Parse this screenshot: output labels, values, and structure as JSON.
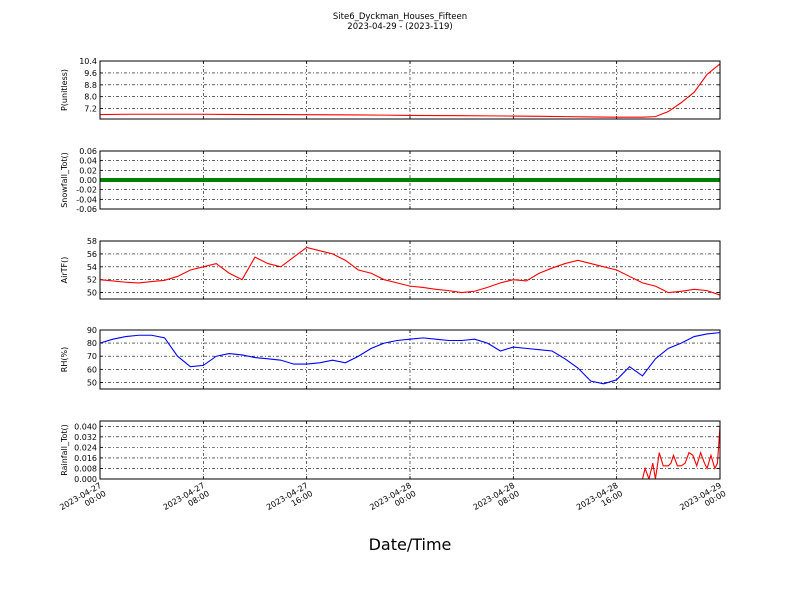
{
  "chart_data": {
    "type": "line",
    "title": "Site6_Dyckman_Houses_Fifteen",
    "subtitle": "2023-04-29 - (2023-119)",
    "xlabel": "Date/Time",
    "x_ticks": [
      "2023-04-27\n00:00",
      "2023-04-27\n08:00",
      "2023-04-27\n16:00",
      "2023-04-28\n00:00",
      "2023-04-28\n08:00",
      "2023-04-28\n16:00",
      "2023-04-29\n00:00"
    ],
    "xlim_hours": [
      0,
      48
    ],
    "grid": true,
    "panels": [
      {
        "ylabel": "P(unitless)",
        "ylim": [
          6.5,
          10.4
        ],
        "yticks": [
          "10.4",
          "9.6",
          "8.8",
          "8.0",
          "7.2"
        ],
        "ytick_values": [
          10.4,
          9.6,
          8.8,
          8.0,
          7.2
        ],
        "color": "#ff0000",
        "series": {
          "x": [
            0,
            2,
            4,
            6,
            8,
            10,
            12,
            14,
            16,
            18,
            20,
            22,
            24,
            26,
            28,
            30,
            32,
            34,
            36,
            38,
            40,
            42,
            43,
            44,
            45,
            46,
            47,
            48
          ],
          "y": [
            6.8,
            6.82,
            6.82,
            6.82,
            6.82,
            6.81,
            6.8,
            6.8,
            6.79,
            6.78,
            6.77,
            6.76,
            6.74,
            6.73,
            6.72,
            6.71,
            6.7,
            6.68,
            6.66,
            6.64,
            6.62,
            6.62,
            6.66,
            7.0,
            7.6,
            8.3,
            9.5,
            10.2
          ]
        }
      },
      {
        "ylabel": "Snowfall_Tot()",
        "ylim": [
          -0.06,
          0.06
        ],
        "yticks": [
          "0.06",
          "0.04",
          "0.02",
          "0.00",
          "-0.02",
          "-0.04",
          "-0.06"
        ],
        "ytick_values": [
          0.06,
          0.04,
          0.02,
          0.0,
          -0.02,
          -0.04,
          -0.06
        ],
        "color": "#008000",
        "series": {
          "x": [
            0,
            48
          ],
          "y": [
            0.0,
            0.0
          ]
        }
      },
      {
        "ylabel": "AirTF()",
        "ylim": [
          49,
          58
        ],
        "yticks": [
          "58",
          "56",
          "54",
          "52",
          "50"
        ],
        "ytick_values": [
          58,
          56,
          54,
          52,
          50
        ],
        "color": "#ff0000",
        "series": {
          "x": [
            0,
            1,
            2,
            3,
            4,
            5,
            6,
            7,
            8,
            9,
            10,
            11,
            12,
            13,
            14,
            15,
            16,
            17,
            18,
            19,
            20,
            21,
            22,
            23,
            24,
            25,
            26,
            27,
            28,
            29,
            30,
            31,
            32,
            33,
            34,
            35,
            36,
            37,
            38,
            39,
            40,
            41,
            42,
            43,
            44,
            45,
            46,
            47,
            48
          ],
          "y": [
            52,
            51.8,
            51.6,
            51.5,
            51.7,
            51.9,
            52.5,
            53.5,
            54.0,
            54.5,
            53.0,
            52.0,
            55.5,
            54.5,
            54.0,
            55.5,
            57.0,
            56.5,
            56.0,
            55.0,
            53.5,
            53.0,
            52.0,
            51.5,
            51.0,
            50.8,
            50.5,
            50.3,
            50.0,
            50.2,
            50.8,
            51.5,
            52.0,
            51.8,
            53.0,
            53.8,
            54.5,
            55.0,
            54.5,
            54.0,
            53.5,
            52.5,
            51.5,
            51.0,
            50.0,
            50.2,
            50.5,
            50.3,
            49.6
          ]
        }
      },
      {
        "ylabel": "RH(%)",
        "ylim": [
          45,
          90
        ],
        "yticks": [
          "90",
          "80",
          "70",
          "60",
          "50"
        ],
        "ytick_values": [
          90,
          80,
          70,
          60,
          50
        ],
        "color": "#0000ff",
        "series": {
          "x": [
            0,
            1,
            2,
            3,
            4,
            5,
            6,
            7,
            8,
            9,
            10,
            11,
            12,
            13,
            14,
            15,
            16,
            17,
            18,
            19,
            20,
            21,
            22,
            23,
            24,
            25,
            26,
            27,
            28,
            29,
            30,
            31,
            32,
            33,
            34,
            35,
            36,
            37,
            38,
            39,
            40,
            41,
            42,
            43,
            44,
            45,
            46,
            47,
            48
          ],
          "y": [
            80,
            83,
            85,
            86,
            86,
            84,
            70,
            62,
            63,
            70,
            72,
            71,
            69,
            68,
            67,
            64,
            64,
            65,
            67,
            65,
            70,
            76,
            80,
            82,
            83,
            84,
            83,
            82,
            82,
            83,
            80,
            74,
            77,
            76,
            75,
            74,
            68,
            61,
            51,
            49,
            52,
            62,
            55,
            68,
            76,
            80,
            85,
            87,
            88
          ]
        }
      },
      {
        "ylabel": "Rainfall_Tot()",
        "ylim": [
          0.0,
          0.044
        ],
        "yticks": [
          "0.040",
          "0.032",
          "0.024",
          "0.016",
          "0.008",
          "0.000"
        ],
        "ytick_values": [
          0.04,
          0.032,
          0.024,
          0.016,
          0.008,
          0.0
        ],
        "color": "#ff0000",
        "series": {
          "x": [
            0,
            42,
            42.2,
            42.5,
            42.8,
            43.0,
            43.3,
            43.6,
            44.0,
            44.2,
            44.4,
            44.7,
            45.0,
            45.3,
            45.6,
            45.9,
            46.2,
            46.5,
            46.8,
            47.0,
            47.3,
            47.6,
            47.8,
            48.0
          ],
          "y": [
            0.0,
            0.0,
            0.008,
            0.0,
            0.012,
            0.0,
            0.02,
            0.01,
            0.01,
            0.012,
            0.018,
            0.01,
            0.01,
            0.012,
            0.02,
            0.018,
            0.01,
            0.02,
            0.012,
            0.008,
            0.018,
            0.008,
            0.012,
            0.04
          ]
        }
      }
    ]
  }
}
